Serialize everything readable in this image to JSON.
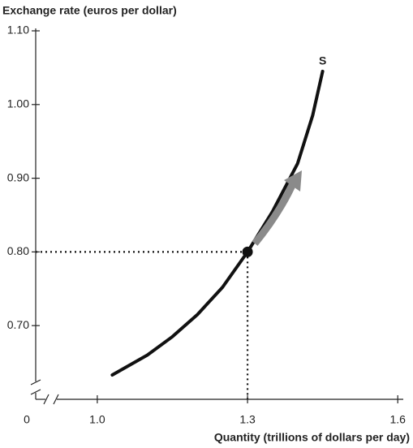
{
  "chart_data": {
    "type": "line",
    "title": "Exchange rate (euros per dollar)",
    "x_label": "Quantity (trillions of dollars per day)",
    "origin_label": "0",
    "series": [
      {
        "name": "S",
        "color": "#111111",
        "x": [
          1.03,
          1.1,
          1.15,
          1.2,
          1.25,
          1.3,
          1.35,
          1.4,
          1.43,
          1.45
        ],
        "values": [
          0.633,
          0.66,
          0.685,
          0.715,
          0.752,
          0.8,
          0.855,
          0.92,
          0.985,
          1.045
        ]
      }
    ],
    "highlight": {
      "x": 1.3,
      "y": 0.8
    },
    "xlim": [
      0.877,
      1.611
    ],
    "ylim": [
      0.6,
      1.1
    ],
    "xticks": [
      {
        "value": 1,
        "label": "1.0"
      },
      1.3,
      1.6
    ],
    "yticks": [
      {
        "value": 1.1,
        "label": "1.10"
      },
      {
        "value": 1,
        "label": "1.00"
      },
      {
        "value": 0.9,
        "label": "0.90"
      },
      {
        "value": 0.8,
        "label": "0.80"
      },
      {
        "value": 0.7,
        "label": "0.70"
      }
    ]
  }
}
